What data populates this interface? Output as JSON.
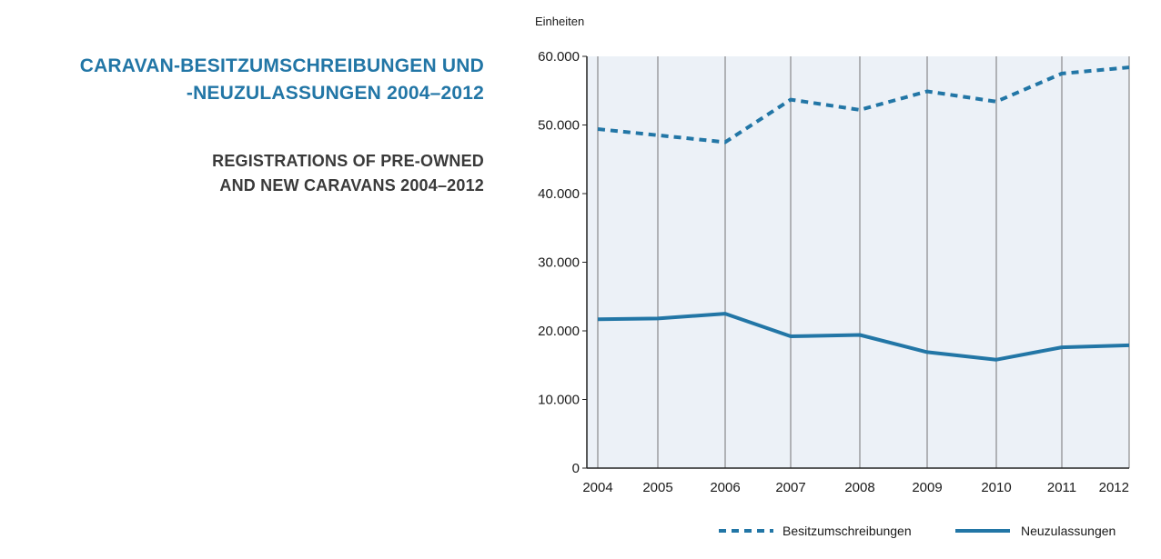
{
  "header": {
    "title_de_line1": "CARAVAN-BESITZUMSCHREIBUNGEN UND",
    "title_de_line2": "-NEUZULASSUNGEN 2004–2012",
    "title_en_line1": "REGISTRATIONS OF PRE-OWNED",
    "title_en_line2": "AND NEW CARAVANS 2004–2012"
  },
  "colors": {
    "series": "#2276a6",
    "title_de": "#2276a6",
    "title_en": "#3a3a3a",
    "plot_background": "#dde6f0",
    "gridline": "#555555"
  },
  "chart_data": {
    "type": "line",
    "ylabel": "Einheiten",
    "ylim": [
      0,
      60000
    ],
    "y_ticks": [
      {
        "value": 0,
        "label": "0"
      },
      {
        "value": 10000,
        "label": "10.000"
      },
      {
        "value": 20000,
        "label": "20.000"
      },
      {
        "value": 30000,
        "label": "30.000"
      },
      {
        "value": 40000,
        "label": "40.000"
      },
      {
        "value": 50000,
        "label": "50.000"
      },
      {
        "value": 60000,
        "label": "60.000"
      }
    ],
    "categories": [
      "2004",
      "2005",
      "2006",
      "2007",
      "2008",
      "2009",
      "2010",
      "2011",
      "2012"
    ],
    "vertical_gridlines": true,
    "legend_placement": "bottom",
    "series": [
      {
        "name": "Besitzumschreibungen",
        "style": "dashed",
        "values": [
          49400,
          48500,
          47500,
          53700,
          52200,
          54900,
          53400,
          57500,
          58400
        ]
      },
      {
        "name": "Neuzulassungen",
        "style": "solid",
        "values": [
          21700,
          21800,
          22500,
          19200,
          19400,
          16900,
          15800,
          17600,
          17900
        ]
      }
    ]
  }
}
